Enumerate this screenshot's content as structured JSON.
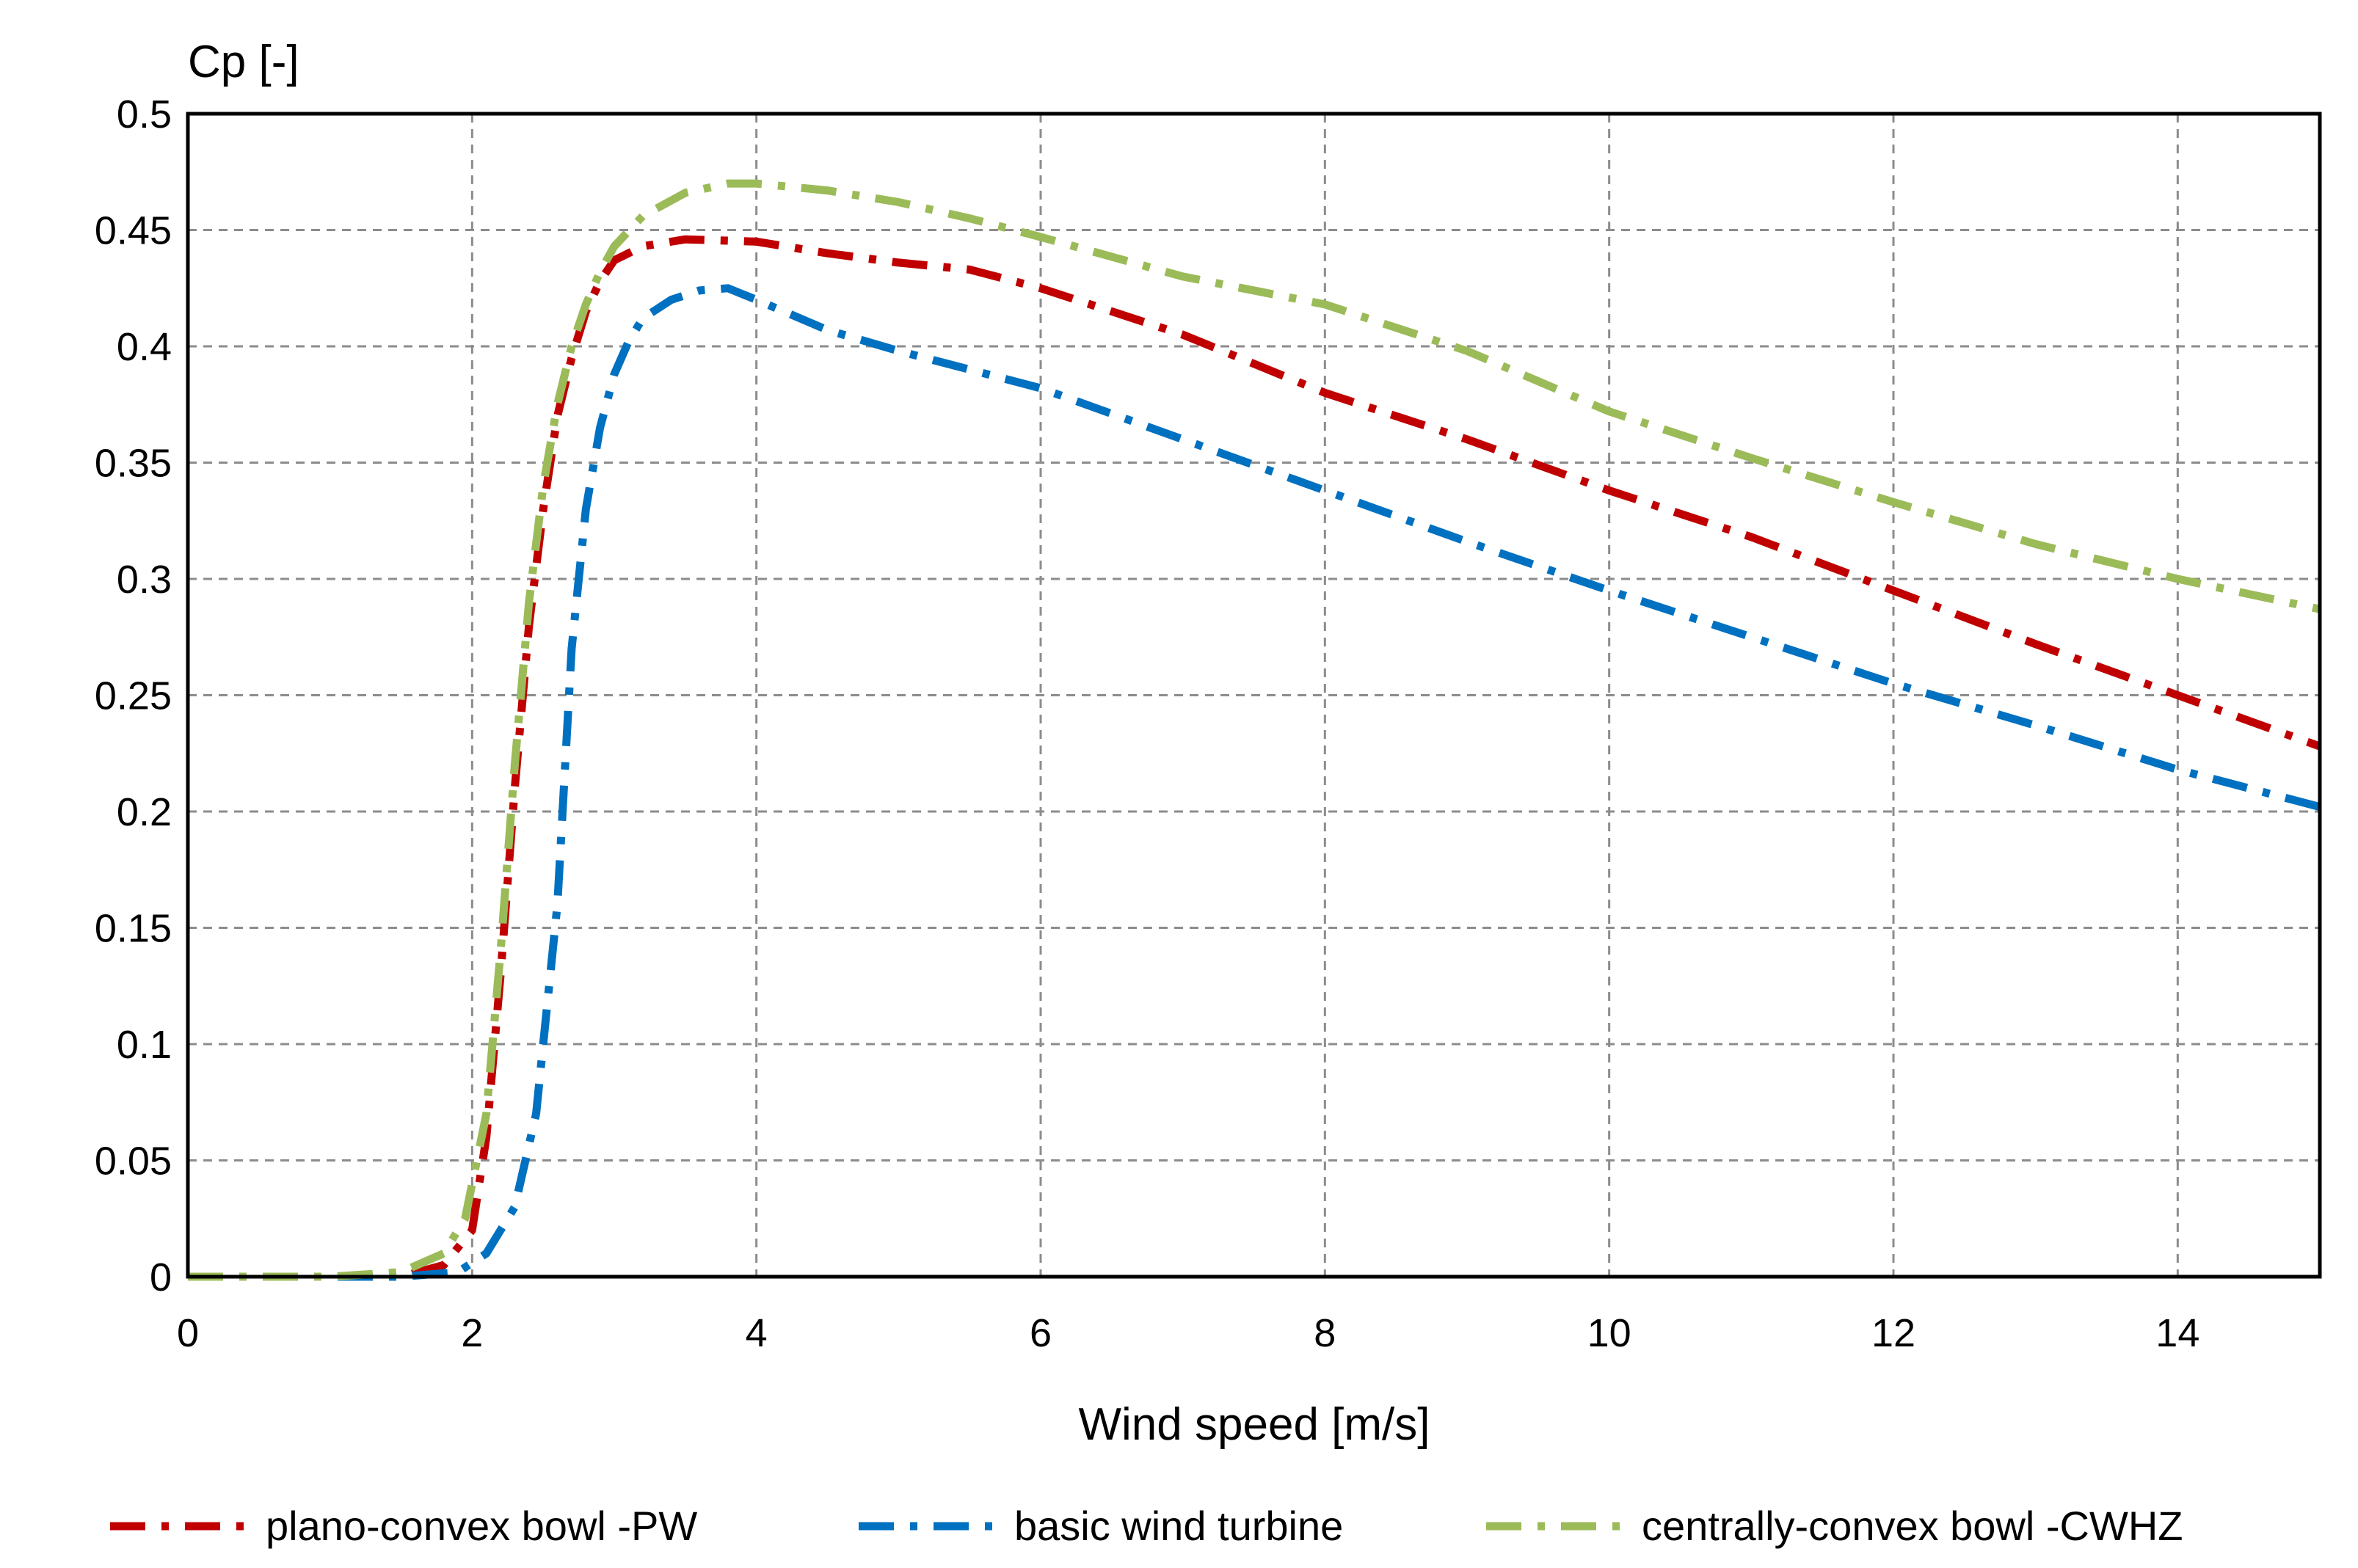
{
  "chart_data": {
    "type": "line",
    "title": "",
    "xlabel": "Wind speed [m/s]",
    "ylabel": "Cp [-]",
    "xlim": [
      0,
      15
    ],
    "ylim": [
      0,
      0.5
    ],
    "grid": true,
    "legend_position": "bottom",
    "x_ticks": [
      0,
      2,
      4,
      6,
      8,
      10,
      12,
      14
    ],
    "x_tick_labels": [
      "0",
      "2",
      "4",
      "6",
      "8",
      "10",
      "12",
      "14"
    ],
    "y_ticks": [
      0,
      0.05,
      0.1,
      0.15,
      0.2,
      0.25,
      0.3,
      0.35,
      0.4,
      0.45,
      0.5
    ],
    "y_tick_labels": [
      "0",
      "0.05",
      "0.1",
      "0.15",
      "0.2",
      "0.25",
      "0.3",
      "0.35",
      "0.4",
      "0.45",
      "0.5"
    ],
    "series": [
      {
        "name": "plano-convex bowl -PW",
        "color": "#c00000",
        "x": [
          0,
          1.5,
          1.8,
          2.0,
          2.1,
          2.2,
          2.3,
          2.4,
          2.5,
          2.6,
          2.7,
          2.8,
          2.9,
          3.0,
          3.2,
          3.5,
          4.0,
          4.5,
          5.0,
          5.5,
          6.0,
          7.0,
          8.0,
          9.0,
          10.0,
          11.0,
          12.0,
          13.0,
          14.0,
          15.0
        ],
        "values": [
          0,
          0,
          0.005,
          0.02,
          0.06,
          0.13,
          0.21,
          0.28,
          0.33,
          0.37,
          0.395,
          0.415,
          0.428,
          0.437,
          0.443,
          0.446,
          0.445,
          0.44,
          0.436,
          0.433,
          0.425,
          0.405,
          0.38,
          0.36,
          0.338,
          0.318,
          0.295,
          0.272,
          0.25,
          0.228
        ]
      },
      {
        "name": "basic wind turbine",
        "color": "#0070c0",
        "x": [
          0,
          1.5,
          1.9,
          2.1,
          2.3,
          2.45,
          2.6,
          2.7,
          2.8,
          2.9,
          3.0,
          3.1,
          3.2,
          3.4,
          3.6,
          3.8,
          4.0,
          4.5,
          5.0,
          5.5,
          6.0,
          7.0,
          8.0,
          9.0,
          10.0,
          11.0,
          12.0,
          13.0,
          14.0,
          15.0
        ],
        "values": [
          0,
          0,
          0.002,
          0.01,
          0.03,
          0.07,
          0.16,
          0.27,
          0.33,
          0.365,
          0.388,
          0.402,
          0.412,
          0.42,
          0.424,
          0.425,
          0.42,
          0.407,
          0.398,
          0.39,
          0.382,
          0.36,
          0.338,
          0.316,
          0.295,
          0.275,
          0.255,
          0.237,
          0.218,
          0.202
        ]
      },
      {
        "name": "centrally-convex bowl -CWHZ",
        "color": "#9bbb59",
        "x": [
          0,
          1.0,
          1.5,
          1.8,
          1.95,
          2.1,
          2.2,
          2.3,
          2.4,
          2.5,
          2.6,
          2.7,
          2.8,
          2.9,
          3.0,
          3.2,
          3.5,
          3.8,
          4.0,
          4.5,
          5.0,
          5.5,
          6.0,
          7.0,
          8.0,
          9.0,
          10.0,
          11.0,
          12.0,
          13.0,
          14.0,
          15.0
        ],
        "values": [
          0,
          0,
          0.002,
          0.01,
          0.025,
          0.07,
          0.14,
          0.22,
          0.29,
          0.34,
          0.375,
          0.4,
          0.418,
          0.432,
          0.443,
          0.456,
          0.466,
          0.47,
          0.47,
          0.467,
          0.462,
          0.455,
          0.447,
          0.43,
          0.418,
          0.398,
          0.372,
          0.352,
          0.333,
          0.315,
          0.3,
          0.287
        ]
      }
    ]
  }
}
